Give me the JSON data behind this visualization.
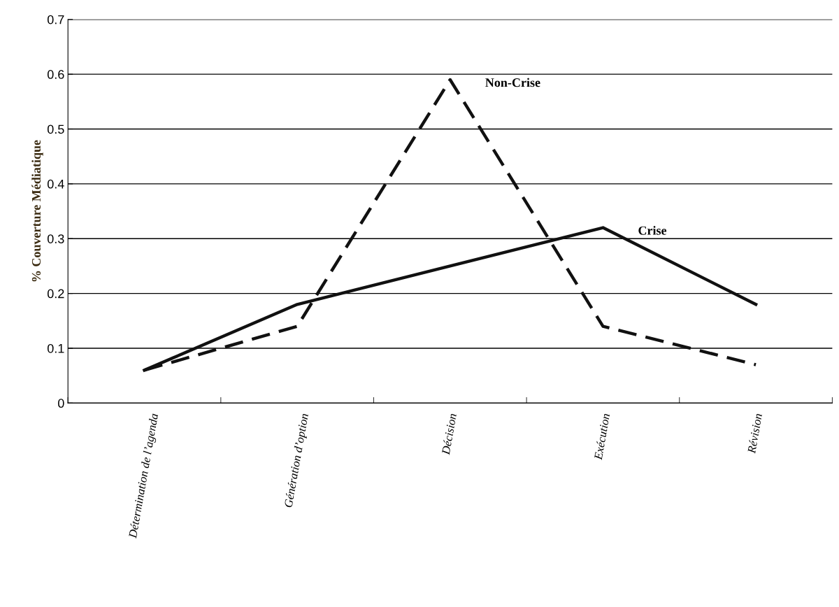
{
  "chart_data": {
    "type": "line",
    "ylabel": "% Couverture Médiatique",
    "categories": [
      "Détermination de l’agenda",
      "Génération d’option",
      "Décision",
      "Exécution",
      "Révision"
    ],
    "series": [
      {
        "name": "Crise",
        "color": "#111111",
        "line_style": "solid",
        "values": [
          0.06,
          0.18,
          0.25,
          0.32,
          0.18
        ]
      },
      {
        "name": "Non-Crise",
        "color": "#111111",
        "line_style": "dashed",
        "values": [
          0.06,
          0.14,
          0.59,
          0.14,
          0.07
        ]
      }
    ],
    "ylim": [
      0,
      0.7
    ],
    "yticks": [
      0,
      0.1,
      0.2,
      0.3,
      0.4,
      0.5,
      0.6,
      0.7
    ],
    "grid": "y"
  }
}
